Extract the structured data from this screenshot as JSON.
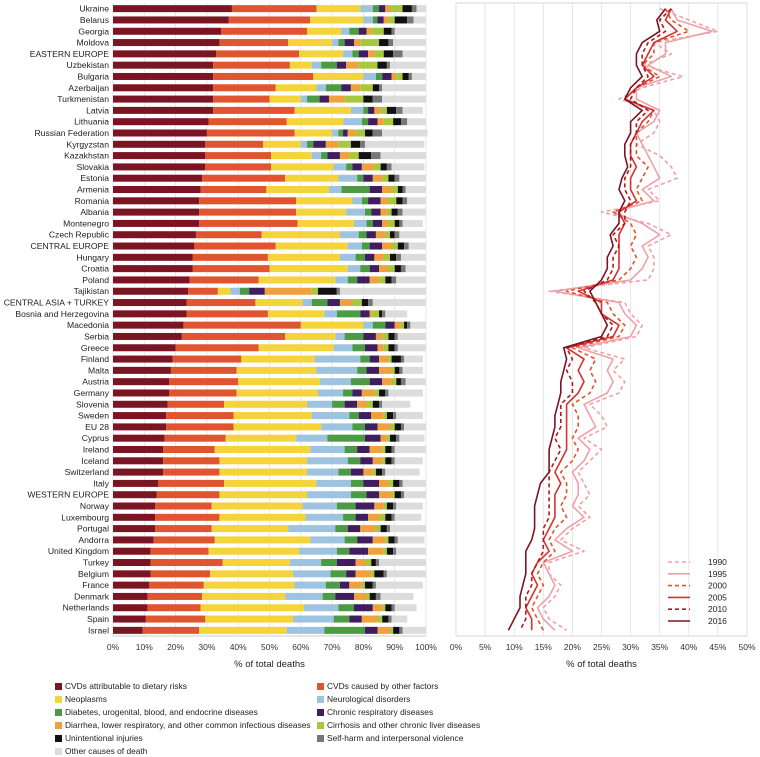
{
  "chart_data": [
    {
      "type": "bar",
      "stacked": true,
      "orientation": "horizontal",
      "xlabel": "% of total deaths",
      "xlim": [
        0,
        100
      ],
      "xticks": [
        "0%",
        "10%",
        "20%",
        "30%",
        "40%",
        "50%",
        "60%",
        "70%",
        "80%",
        "90%",
        "100%"
      ],
      "grid": true,
      "legend_position": "bottom",
      "categories": [
        "Ukraine",
        "Belarus",
        "Georgia",
        "Moldova",
        "EASTERN EUROPE",
        "Uzbekistan",
        "Bulgaria",
        "Azerbaijan",
        "Turkmenistan",
        "Latvia",
        "Lithuania",
        "Russian Federation",
        "Kyrgyzstan",
        "Kazakhstan",
        "Slovakia",
        "Estonia",
        "Armenia",
        "Romania",
        "Albania",
        "Montenegro",
        "Czech Republic",
        "CENTRAL EUROPE",
        "Hungary",
        "Croatia",
        "Poland",
        "Tajikistan",
        "CENTRAL ASIA + TURKEY",
        "Bosnia and Herzegovina",
        "Macedonia",
        "Serbia",
        "Greece",
        "Finland",
        "Malta",
        "Austria",
        "Germany",
        "Slovenia",
        "Sweden",
        "EU 28",
        "Cyprus",
        "Ireland",
        "Iceland",
        "Switzerland",
        "Italy",
        "WESTERN EUROPE",
        "Norway",
        "Luxembourg",
        "Portugal",
        "Andorra",
        "United Kingdom",
        "Turkey",
        "Belgium",
        "France",
        "Denmark",
        "Netherlands",
        "Spain",
        "Israel"
      ],
      "series": [
        {
          "name": "CVDs attributable to dietary risks",
          "color": "#7b1523",
          "values": [
            38,
            37,
            34.5,
            34,
            33,
            32,
            32,
            32,
            32,
            32,
            30.5,
            30,
            29.5,
            29.5,
            29.5,
            28.5,
            28,
            27.5,
            27.5,
            27.5,
            26.5,
            26,
            25.5,
            25.5,
            24.5,
            24,
            23.5,
            23.5,
            22.5,
            22,
            20,
            19,
            18.5,
            18,
            18,
            17.5,
            17,
            17,
            16.5,
            16,
            16,
            16,
            14.5,
            14,
            13.5,
            13.5,
            13.5,
            13,
            12,
            12,
            12,
            11.5,
            11,
            11,
            10.5,
            9.5
          ]
        },
        {
          "name": "CVDs caused by other factors",
          "color": "#e0542f",
          "values": [
            27,
            26,
            27.5,
            22,
            26.5,
            24.5,
            32,
            20,
            18,
            26,
            25,
            28,
            18.5,
            21,
            21,
            26.5,
            21,
            31,
            31,
            31.5,
            21,
            26,
            24,
            24.5,
            22,
            9.5,
            22,
            26,
            37.5,
            33,
            26.5,
            22,
            21,
            22,
            21.5,
            18,
            21.5,
            21.5,
            19.5,
            16.5,
            18,
            18,
            21,
            20,
            18,
            20.5,
            18,
            19.5,
            18.5,
            23,
            19,
            17.5,
            17.5,
            17,
            19,
            18
          ]
        },
        {
          "name": "Neoplasms",
          "color": "#f5d33a",
          "values": [
            14,
            17,
            11,
            14,
            14,
            7,
            16,
            13,
            10,
            18,
            18,
            12,
            12,
            13,
            20,
            17,
            20,
            18,
            16,
            18,
            25,
            23,
            23,
            25,
            24.5,
            4,
            15,
            18,
            20,
            16,
            24,
            23.5,
            25.5,
            26,
            26,
            26.5,
            25,
            28,
            22.5,
            30.5,
            28,
            28,
            29.5,
            28,
            29,
            27.5,
            24.5,
            30.5,
            29,
            21.5,
            26.5,
            29,
            26.5,
            33,
            28,
            28
          ]
        },
        {
          "name": "Neurological disorders",
          "color": "#9dc3e0",
          "values": [
            4,
            3,
            2.5,
            2,
            3,
            3,
            4,
            3,
            2,
            4,
            6,
            2,
            2,
            3,
            4,
            6,
            4,
            3,
            6,
            4,
            6,
            4.5,
            5,
            4,
            4,
            3,
            3,
            4,
            3,
            3,
            6,
            14.5,
            13,
            10,
            8,
            8,
            12,
            10,
            10,
            11,
            13,
            10,
            11,
            14,
            11,
            12,
            15,
            11,
            12,
            10,
            12,
            10,
            12,
            11,
            13,
            12
          ]
        },
        {
          "name": "Diabetes, urogenital, blood, and endocrine diseases",
          "color": "#4b9a44",
          "values": [
            2,
            1.5,
            3,
            2,
            2,
            5,
            2,
            5,
            4,
            1.5,
            2,
            1.5,
            2,
            2,
            2,
            2,
            9,
            2,
            2,
            2,
            2.5,
            2.5,
            3,
            3,
            3,
            3,
            5,
            7.5,
            4,
            6,
            4,
            3,
            3,
            6,
            3,
            4,
            3,
            4,
            12,
            4,
            4,
            4,
            4,
            5,
            6,
            4,
            4,
            4,
            4,
            5,
            5,
            4.5,
            4,
            5,
            5,
            13
          ]
        },
        {
          "name": "Chronic respiratory diseases",
          "color": "#3f1d5f",
          "values": [
            2,
            2,
            2.5,
            3,
            3,
            3,
            3,
            3,
            3,
            2,
            3,
            1.5,
            4,
            4,
            3,
            3,
            4,
            4,
            3,
            3,
            3,
            4,
            3,
            3,
            4,
            5,
            4,
            3,
            3,
            4,
            4,
            3,
            4,
            4,
            3,
            4,
            4,
            4,
            5,
            4,
            4,
            4,
            5,
            4,
            6,
            4,
            4,
            5,
            6,
            6,
            3,
            3,
            6,
            6,
            4,
            4
          ]
        },
        {
          "name": "Diarrhea, lower respiratory, and other common infectious diseases",
          "color": "#f0a03c",
          "values": [
            1.5,
            1.5,
            1.5,
            2,
            2,
            4,
            1.5,
            3,
            5,
            2,
            2,
            2.5,
            4,
            3,
            4,
            3,
            3,
            2,
            2,
            2,
            3,
            3,
            3,
            3,
            3,
            15,
            4,
            1,
            2,
            2,
            2,
            3,
            4,
            3,
            4,
            3,
            4,
            4,
            2,
            4,
            3,
            3,
            3,
            4,
            3,
            4,
            5,
            4,
            5,
            3,
            5,
            4,
            4,
            3,
            5,
            4
          ]
        },
        {
          "name": "Cirrhosis and other chronic liver diseases",
          "color": "#a8c83c",
          "values": [
            4,
            2,
            4,
            6,
            3,
            6,
            2,
            4,
            6,
            2,
            3,
            3,
            4,
            3,
            2,
            2,
            2,
            3,
            1.5,
            2,
            1.5,
            2,
            2,
            2,
            2,
            2,
            3,
            2,
            1,
            2,
            1.5,
            1,
            1,
            1.5,
            1.5,
            2,
            1,
            1.5,
            1,
            1,
            1,
            1,
            1.5,
            1,
            1,
            1.5,
            1.5,
            1,
            1,
            2,
            1,
            1,
            1,
            1,
            1.5,
            1
          ]
        },
        {
          "name": "Unintentional injuries",
          "color": "#111111",
          "values": [
            3,
            4,
            2.5,
            3,
            3,
            3,
            2,
            2,
            3,
            3,
            2.5,
            2.5,
            3,
            4,
            2,
            2,
            1.5,
            2,
            2,
            1.5,
            1.5,
            2,
            2,
            2,
            2,
            6,
            2,
            1,
            1,
            2,
            2,
            3,
            1.5,
            1.5,
            2,
            2,
            2,
            2,
            2,
            2,
            2,
            2,
            2,
            2,
            2,
            2,
            2,
            2,
            2,
            1.5,
            3,
            2.5,
            2,
            2,
            2,
            2
          ]
        },
        {
          "name": "Self-harm and interpersonal violence",
          "color": "#777777",
          "values": [
            1.5,
            2,
            1,
            1.5,
            3,
            1,
            1,
            1,
            3,
            2,
            2,
            3,
            1.5,
            3,
            1.5,
            1.5,
            1,
            1.5,
            1.5,
            1,
            1.5,
            1.5,
            1.5,
            1.5,
            1.5,
            1,
            1.5,
            1,
            1,
            1,
            1,
            1,
            1,
            1.5,
            1,
            1,
            1,
            1,
            1,
            1,
            1,
            1,
            1,
            1,
            1,
            1,
            1,
            1,
            1,
            1,
            1,
            1,
            1.5,
            1,
            1,
            1
          ]
        },
        {
          "name": "Other causes of death",
          "color": "#dcdcdc",
          "values": [
            3,
            4,
            10,
            10.5,
            7.5,
            11.5,
            4.5,
            14,
            14,
            6.5,
            6,
            14.5,
            19,
            14.5,
            10.5,
            8.5,
            6.5,
            6,
            7.5,
            6.5,
            8.5,
            5.5,
            8,
            6.5,
            9.5,
            27.5,
            17,
            7,
            5,
            9,
            9,
            6,
            6.5,
            6.5,
            11,
            9,
            8.5,
            7,
            8,
            10,
            9,
            11,
            7.5,
            7,
            8.5,
            8.5,
            11.5,
            8.5,
            9.5,
            15,
            12.5,
            15,
            10.5,
            7,
            5,
            7.5
          ]
        }
      ]
    },
    {
      "type": "line",
      "xlabel": "% of total deaths",
      "xlim": [
        0,
        50
      ],
      "xticks": [
        "0%",
        "5%",
        "10%",
        "15%",
        "20%",
        "25%",
        "30%",
        "35%",
        "40%",
        "45%",
        "50%"
      ],
      "grid": true,
      "legend_position": "bottom-right",
      "categories_ref": "same rows as stacked bar chart",
      "series": [
        {
          "name": "1990",
          "color": "#f0a0a8",
          "dash": "dash",
          "values": [
            35,
            40,
            45,
            34,
            37,
            32,
            39,
            32,
            28,
            34,
            35,
            34,
            31,
            35,
            37,
            38,
            33,
            35,
            25,
            33,
            37,
            33,
            34,
            34,
            33,
            16,
            29,
            30,
            32,
            31,
            22,
            29,
            27,
            29,
            28,
            23,
            25,
            26,
            22,
            25,
            23,
            21,
            22,
            23,
            21,
            23,
            20,
            18,
            22,
            16,
            16,
            18,
            17,
            15,
            16,
            19
          ]
        },
        {
          "name": "1995",
          "color": "#f0a0a8",
          "dash": "solid",
          "values": [
            37,
            38,
            44,
            36,
            36,
            33,
            37,
            31,
            31,
            35,
            34,
            31,
            32,
            33,
            34,
            35,
            32,
            34,
            27,
            32,
            35,
            32,
            33,
            32,
            30,
            17,
            28,
            29,
            31,
            30,
            21,
            27,
            26,
            27,
            26,
            22,
            23,
            24,
            21,
            23,
            22,
            20,
            21,
            21,
            20,
            22,
            19,
            17,
            20,
            15,
            16,
            17,
            16,
            14,
            15,
            17
          ]
        },
        {
          "name": "2000",
          "color": "#e0542f",
          "dash": "dash",
          "values": [
            36,
            37,
            40,
            34,
            34,
            32,
            35,
            31,
            29,
            34,
            33,
            31,
            31,
            31,
            33,
            32,
            31,
            32,
            27,
            30,
            31,
            30,
            31,
            30,
            28,
            19,
            26,
            27,
            29,
            28,
            20,
            24,
            23,
            24,
            23,
            20,
            21,
            21,
            20,
            21,
            20,
            18,
            19,
            19,
            18,
            19,
            17,
            16,
            17,
            15,
            14,
            15,
            14,
            13,
            14,
            15
          ]
        },
        {
          "name": "2005",
          "color": "#d93030",
          "dash": "solid",
          "values": [
            37,
            36,
            38,
            34,
            33,
            32,
            34,
            31,
            29,
            34,
            32,
            31,
            30,
            30,
            31,
            30,
            30,
            31,
            28,
            29,
            28,
            28,
            28,
            28,
            27,
            21,
            25,
            25,
            28,
            27,
            19,
            22,
            21,
            22,
            21,
            19,
            19,
            19,
            19,
            19,
            18,
            17,
            18,
            17,
            17,
            17,
            16,
            15,
            16,
            14,
            13,
            14,
            13,
            12,
            13,
            13
          ]
        },
        {
          "name": "2010",
          "color": "#b01a1a",
          "dash": "dash",
          "values": [
            37,
            35,
            36,
            33,
            32,
            32,
            33,
            31,
            30,
            33,
            31,
            31,
            30,
            30,
            30,
            29,
            29,
            30,
            29,
            29,
            27,
            28,
            27,
            27,
            26,
            22,
            24,
            25,
            27,
            26,
            19,
            20,
            19,
            20,
            20,
            18,
            18,
            18,
            17,
            18,
            17,
            16,
            16,
            16,
            16,
            16,
            15,
            15,
            15,
            14,
            13,
            13,
            12,
            12,
            12,
            11
          ]
        },
        {
          "name": "2016",
          "color": "#7b1523",
          "dash": "solid",
          "values": [
            36,
            34.5,
            35,
            32,
            31,
            31,
            32,
            30,
            29,
            32,
            30,
            30,
            29,
            29,
            29.5,
            28.5,
            28,
            29,
            28,
            28,
            26.5,
            27,
            26,
            26,
            25,
            23,
            24,
            25,
            26,
            25,
            18.5,
            19,
            18.5,
            18,
            18,
            17.5,
            17,
            17,
            16.5,
            16,
            16,
            16,
            14.5,
            14,
            13.5,
            13.5,
            13.5,
            13,
            12,
            12,
            12,
            11.5,
            11,
            11,
            10,
            9
          ]
        }
      ]
    }
  ]
}
